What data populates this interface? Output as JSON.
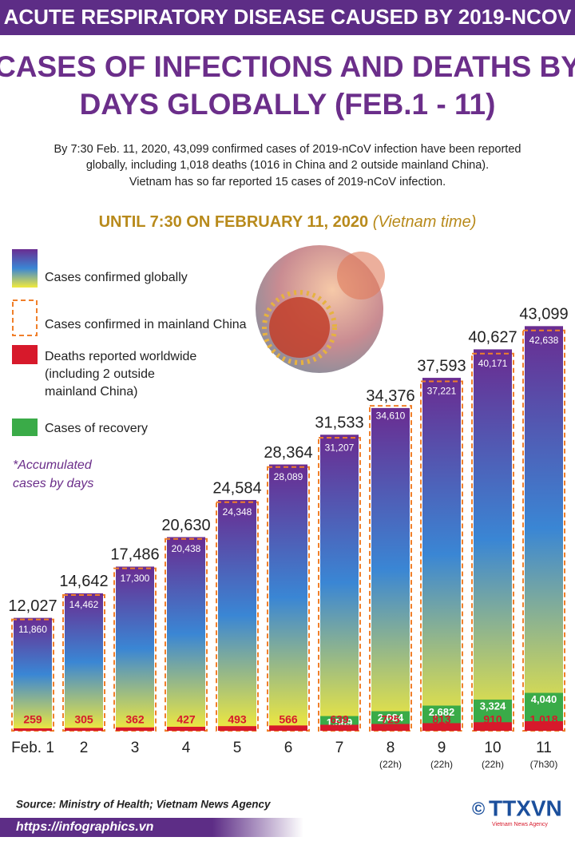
{
  "header": {
    "banner": "ACUTE RESPIRATORY DISEASE CAUSED BY 2019-NCOV",
    "title": [
      "CASES OF INFECTIONS AND DEATHS BY",
      "DAYS GLOBALLY (FEB.1 - 11)"
    ],
    "paragraph": [
      "By 7:30 Feb. 11, 2020,  43,099 confirmed cases of 2019-nCoV infection have been reported",
      "globally, including 1,018 deaths (1016 in China and 2 outside mainland China).",
      "Vietnam has so far reported 15 cases of 2019-nCoV infection."
    ],
    "subheading": "UNTIL 7:30 ON FEBRUARY 11, 2020",
    "subheading_note": "(Vietnam time)"
  },
  "chart_data": {
    "type": "bar",
    "categories": [
      "Feb. 1",
      "2",
      "3",
      "4",
      "5",
      "6",
      "7",
      "8",
      "9",
      "10",
      "11"
    ],
    "sublabels": [
      null,
      null,
      null,
      null,
      null,
      null,
      null,
      "(22h)",
      "(22h)",
      "(22h)",
      "(7h30)"
    ],
    "ylim": [
      0,
      45000
    ],
    "series": [
      {
        "name": "Cases confirmed globally",
        "color": [
          "#6a2c91",
          "#3a86d4",
          "#f2ea3c"
        ],
        "values": [
          12027,
          14642,
          17486,
          20630,
          24584,
          28364,
          31533,
          34376,
          37593,
          40627,
          43099
        ],
        "value_labels": [
          "12,027",
          "14,642",
          "17,486",
          "20,630",
          "24,584",
          "28,364",
          "31,533",
          "34,376",
          "37,593",
          "40,627",
          "43,099"
        ]
      },
      {
        "name": "Cases confirmed in mainland China",
        "color": "#f07f2a",
        "values": [
          11860,
          14462,
          17300,
          20438,
          24348,
          28089,
          31207,
          34610,
          37221,
          40171,
          42638
        ],
        "value_labels": [
          "11,860",
          "14,462",
          "17,300",
          "20,438",
          "24,348",
          "28,089",
          "31,207",
          "34,610",
          "37,221",
          "40,171",
          "42,638"
        ]
      },
      {
        "name": "Deaths reported worldwide\n(including 2 outside\nmainland China)",
        "color": "#d7192b",
        "values": [
          259,
          305,
          362,
          427,
          493,
          566,
          639,
          725,
          813,
          910,
          1018
        ],
        "value_labels": [
          "259",
          "305",
          "362",
          "427",
          "493",
          "566",
          "639",
          "725",
          "813",
          "910",
          "1,018"
        ]
      },
      {
        "name": "Cases of recovery",
        "color": "#3aab48",
        "values": [
          null,
          null,
          null,
          null,
          null,
          null,
          1569,
          2084,
          2682,
          3324,
          4040
        ],
        "value_labels": [
          null,
          null,
          null,
          null,
          null,
          null,
          "1,569",
          "2,084",
          "2,682",
          "3,324",
          "4,040"
        ]
      }
    ],
    "note": [
      "*Accumulated",
      "cases by days"
    ]
  },
  "footer": {
    "source": "Source: Ministry of Health; Vietnam News Agency",
    "url": "https://infographics.vn",
    "logo": {
      "symbol": "©",
      "name": "TTXVN",
      "tagline": "Vietnam News Agency"
    }
  }
}
